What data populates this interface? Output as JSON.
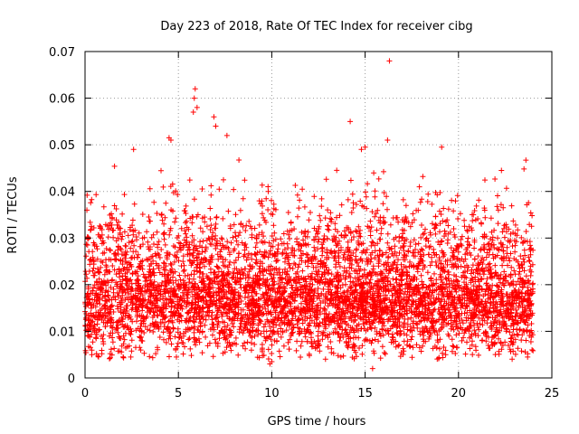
{
  "chart_data": {
    "type": "scatter",
    "title": "Day 223 of 2018, Rate Of TEC Index for receiver cibg",
    "xlabel": "GPS time / hours",
    "ylabel": "ROTI / TECUs",
    "xlim": [
      0,
      25
    ],
    "ylim": [
      0,
      0.07
    ],
    "x_ticks": [
      0,
      5,
      10,
      15,
      20,
      25
    ],
    "x_tick_labels": [
      "0",
      "5",
      "10",
      "15",
      "20",
      "25"
    ],
    "y_ticks": [
      0,
      0.01,
      0.02,
      0.03,
      0.04,
      0.05,
      0.06,
      0.07
    ],
    "y_tick_labels": [
      "0",
      "0.01",
      "0.02",
      "0.03",
      "0.04",
      "0.05",
      "0.06",
      "0.07"
    ],
    "grid": true,
    "marker": "+",
    "series": [
      {
        "name": "ROTI",
        "color": "#ff0000",
        "data_range_x": [
          0,
          24
        ],
        "typical_band": [
          0.008,
          0.025
        ],
        "outliers": [
          {
            "x": 5.9,
            "y": 0.062
          },
          {
            "x": 5.85,
            "y": 0.06
          },
          {
            "x": 6.0,
            "y": 0.058
          },
          {
            "x": 5.8,
            "y": 0.057
          },
          {
            "x": 6.9,
            "y": 0.056
          },
          {
            "x": 7.0,
            "y": 0.054
          },
          {
            "x": 16.3,
            "y": 0.068
          },
          {
            "x": 16.2,
            "y": 0.051
          },
          {
            "x": 14.2,
            "y": 0.055
          },
          {
            "x": 4.5,
            "y": 0.0515
          },
          {
            "x": 4.6,
            "y": 0.051
          },
          {
            "x": 15.0,
            "y": 0.0495
          },
          {
            "x": 14.8,
            "y": 0.049
          },
          {
            "x": 19.1,
            "y": 0.0495
          },
          {
            "x": 2.6,
            "y": 0.049
          },
          {
            "x": 7.6,
            "y": 0.052
          },
          {
            "x": 22.3,
            "y": 0.0445
          },
          {
            "x": 9.8,
            "y": 0.041
          },
          {
            "x": 0.1,
            "y": 0.036
          },
          {
            "x": 9.9,
            "y": 0.003
          },
          {
            "x": 10.0,
            "y": 0.0035
          },
          {
            "x": 15.4,
            "y": 0.002
          }
        ]
      }
    ]
  }
}
